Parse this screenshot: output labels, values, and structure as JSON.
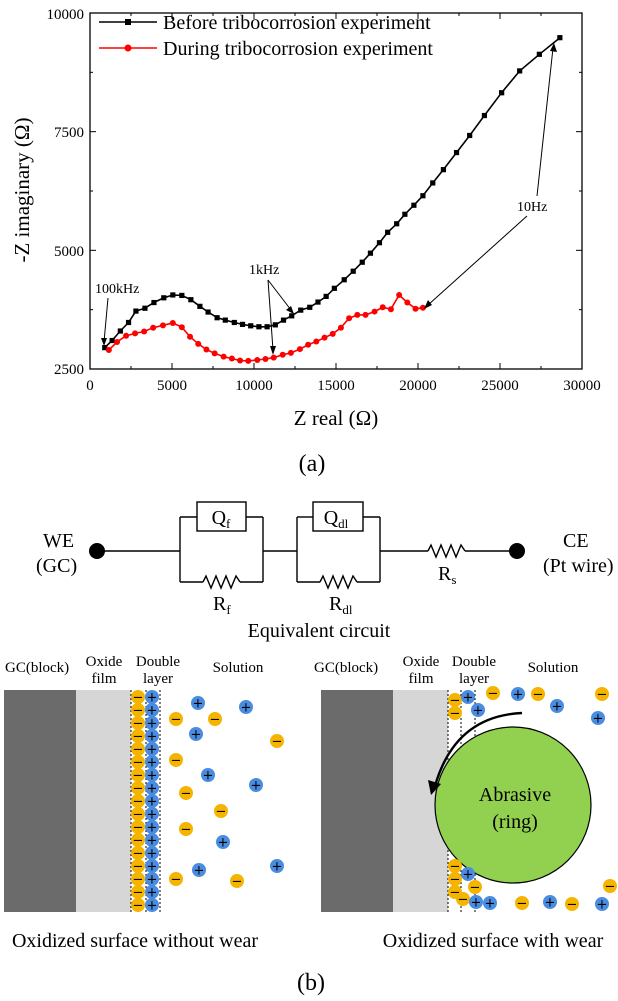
{
  "figure": {
    "panel_a_label": "(a)",
    "panel_b_label": "(b)"
  },
  "chart_data": {
    "type": "line",
    "title": "",
    "xlabel": "Z real (Ω)",
    "ylabel": "-Z imaginary (Ω)",
    "xlim": [
      0,
      30000
    ],
    "ylim": [
      2500,
      10000
    ],
    "x_ticks": [
      "0",
      "5000",
      "10000",
      "15000",
      "20000",
      "25000",
      "30000"
    ],
    "y_ticks": [
      "2500",
      "5000",
      "7500",
      "10000"
    ],
    "legend_position": "top-left",
    "grid": false,
    "series": [
      {
        "name": "Before tribocorrosion experiment",
        "color": "#000000",
        "marker": "square",
        "points": [
          [
            900,
            2950
          ],
          [
            1350,
            3100
          ],
          [
            1850,
            3300
          ],
          [
            2350,
            3480
          ],
          [
            2800,
            3720
          ],
          [
            3350,
            3780
          ],
          [
            3900,
            3900
          ],
          [
            4500,
            4000
          ],
          [
            5050,
            4060
          ],
          [
            5600,
            4050
          ],
          [
            6150,
            3960
          ],
          [
            6700,
            3820
          ],
          [
            7200,
            3700
          ],
          [
            7750,
            3580
          ],
          [
            8250,
            3530
          ],
          [
            8800,
            3480
          ],
          [
            9300,
            3440
          ],
          [
            9800,
            3410
          ],
          [
            10300,
            3390
          ],
          [
            10800,
            3390
          ],
          [
            11300,
            3430
          ],
          [
            11800,
            3530
          ],
          [
            12300,
            3620
          ],
          [
            12850,
            3740
          ],
          [
            13400,
            3800
          ],
          [
            13900,
            3910
          ],
          [
            14400,
            4030
          ],
          [
            14900,
            4200
          ],
          [
            15500,
            4380
          ],
          [
            16050,
            4560
          ],
          [
            16600,
            4750
          ],
          [
            17100,
            4940
          ],
          [
            17650,
            5160
          ],
          [
            18150,
            5380
          ],
          [
            18700,
            5560
          ],
          [
            19200,
            5760
          ],
          [
            19750,
            5950
          ],
          [
            20300,
            6150
          ],
          [
            20900,
            6420
          ],
          [
            21550,
            6700
          ],
          [
            22350,
            7060
          ],
          [
            23150,
            7420
          ],
          [
            24050,
            7840
          ],
          [
            25100,
            8320
          ],
          [
            26200,
            8780
          ],
          [
            27400,
            9130
          ],
          [
            28650,
            9480
          ]
        ]
      },
      {
        "name": "During tribocorrosion experiment",
        "color": "#ff0000",
        "marker": "circle",
        "points": [
          [
            1150,
            2900
          ],
          [
            1650,
            3070
          ],
          [
            2200,
            3200
          ],
          [
            2750,
            3250
          ],
          [
            3300,
            3290
          ],
          [
            3850,
            3370
          ],
          [
            4450,
            3420
          ],
          [
            5050,
            3470
          ],
          [
            5600,
            3380
          ],
          [
            6100,
            3180
          ],
          [
            6600,
            3030
          ],
          [
            7100,
            2910
          ],
          [
            7600,
            2830
          ],
          [
            8150,
            2760
          ],
          [
            8650,
            2720
          ],
          [
            9150,
            2680
          ],
          [
            9650,
            2670
          ],
          [
            10200,
            2690
          ],
          [
            10700,
            2710
          ],
          [
            11200,
            2740
          ],
          [
            11750,
            2800
          ],
          [
            12250,
            2840
          ],
          [
            12800,
            2920
          ],
          [
            13300,
            3010
          ],
          [
            13800,
            3080
          ],
          [
            14300,
            3160
          ],
          [
            14800,
            3240
          ],
          [
            15300,
            3370
          ],
          [
            15800,
            3570
          ],
          [
            16300,
            3640
          ],
          [
            16800,
            3640
          ],
          [
            17350,
            3710
          ],
          [
            17850,
            3800
          ],
          [
            18350,
            3760
          ],
          [
            18850,
            4060
          ],
          [
            19350,
            3900
          ],
          [
            19850,
            3770
          ],
          [
            20300,
            3790
          ]
        ]
      }
    ],
    "annotations": [
      "100kHz",
      "1kHz",
      "10Hz"
    ]
  },
  "circuit": {
    "we_label": "WE",
    "we_sub": "(GC)",
    "ce_label": "CE",
    "ce_sub": "(Pt wire)",
    "qf_main": "Q",
    "qf_sub": "f",
    "qdl_main": "Q",
    "qdl_sub": "dl",
    "rf_main": "R",
    "rf_sub": "f",
    "rdl_main": "R",
    "rdl_sub": "dl",
    "rs_main": "R",
    "rs_sub": "s",
    "caption": "Equivalent circuit"
  },
  "schematic": {
    "left": {
      "block_label": "GC(block)",
      "oxide_label_1": "Oxide",
      "oxide_label_2": "film",
      "double_label_1": "Double",
      "double_label_2": "layer",
      "solution_label": "Solution",
      "caption": "Oxidized surface without wear"
    },
    "right": {
      "block_label": "GC(block)",
      "oxide_label_1": "Oxide",
      "oxide_label_2": "film",
      "double_label_1": "Double",
      "double_label_2": "layer",
      "solution_label": "Solution",
      "abrasive_label_1": "Abrasive",
      "abrasive_label_2": "(ring)",
      "caption": "Oxidized surface with wear"
    },
    "colors": {
      "block": "#6b6b6b",
      "oxide": "#d6d6d6",
      "anion": "#f5b400",
      "cation": "#4a8ce0",
      "abrasive": "#92d050"
    },
    "ion_signs": {
      "plus": "+",
      "minus": "−"
    }
  }
}
